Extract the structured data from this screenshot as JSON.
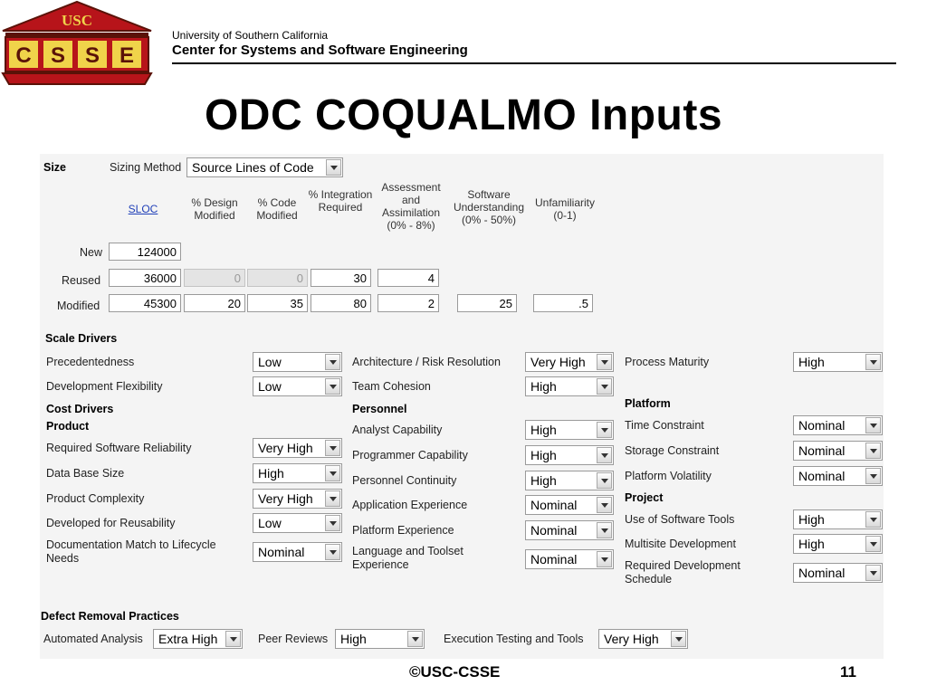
{
  "header": {
    "logo_top_text": "USC",
    "logo_letters": [
      "C",
      "S",
      "S",
      "E"
    ],
    "university": "University of Southern California",
    "center": "Center for Systems and Software Engineering",
    "title": "ODC COQUALMO Inputs"
  },
  "size": {
    "label": "Size",
    "sizing_method_label": "Sizing Method",
    "sizing_method_value": "Source Lines of Code",
    "headers": {
      "sloc": "SLOC",
      "design_modified": "% Design Modified",
      "code_modified": "% Code Modified",
      "integration_required": "% Integration Required",
      "assessment": "Assessment and Assimilation (0% - 8%)",
      "su": "Software Understanding (0% - 50%)",
      "unfamiliarity": "Unfamiliarity (0-1)"
    },
    "rows": {
      "new": {
        "label": "New",
        "sloc": "124000"
      },
      "reused": {
        "label": "Reused",
        "sloc": "36000",
        "dm": "0",
        "cm": "0",
        "ir": "30",
        "aa": "4"
      },
      "modified": {
        "label": "Modified",
        "sloc": "45300",
        "dm": "20",
        "cm": "35",
        "ir": "80",
        "aa": "2",
        "su": "25",
        "unfm": ".5"
      }
    }
  },
  "scale_drivers": {
    "heading": "Scale Drivers",
    "precedentedness": {
      "label": "Precedentedness",
      "value": "Low"
    },
    "dev_flexibility": {
      "label": "Development Flexibility",
      "value": "Low"
    },
    "arch_risk": {
      "label": "Architecture / Risk Resolution",
      "value": "Very High"
    },
    "team_cohesion": {
      "label": "Team Cohesion",
      "value": "High"
    },
    "process_maturity": {
      "label": "Process Maturity",
      "value": "High"
    }
  },
  "cost_drivers": {
    "heading": "Cost Drivers",
    "product": {
      "heading": "Product",
      "rely": {
        "label": "Required Software Reliability",
        "value": "Very High"
      },
      "data": {
        "label": "Data Base Size",
        "value": "High"
      },
      "cplx": {
        "label": "Product Complexity",
        "value": "Very High"
      },
      "ruse": {
        "label": "Developed for Reusability",
        "value": "Low"
      },
      "docu": {
        "label": "Documentation Match to Lifecycle Needs",
        "value": "Nominal"
      }
    },
    "personnel": {
      "heading": "Personnel",
      "acap": {
        "label": "Analyst Capability",
        "value": "High"
      },
      "pcap": {
        "label": "Programmer Capability",
        "value": "High"
      },
      "pcon": {
        "label": "Personnel Continuity",
        "value": "High"
      },
      "apex": {
        "label": "Application Experience",
        "value": "Nominal"
      },
      "plex": {
        "label": "Platform Experience",
        "value": "Nominal"
      },
      "ltex": {
        "label": "Language and Toolset Experience",
        "value": "Nominal"
      }
    },
    "platform": {
      "heading": "Platform",
      "time": {
        "label": "Time Constraint",
        "value": "Nominal"
      },
      "stor": {
        "label": "Storage Constraint",
        "value": "Nominal"
      },
      "pvol": {
        "label": "Platform Volatility",
        "value": "Nominal"
      }
    },
    "project": {
      "heading": "Project",
      "tool": {
        "label": "Use of Software Tools",
        "value": "High"
      },
      "site": {
        "label": "Multisite Development",
        "value": "High"
      },
      "sced": {
        "label": "Required Development Schedule",
        "value": "Nominal"
      }
    }
  },
  "defect_removal": {
    "heading": "Defect Removal Practices",
    "automated_analysis": {
      "label": "Automated Analysis",
      "value": "Extra High"
    },
    "peer_reviews": {
      "label": "Peer Reviews",
      "value": "High"
    },
    "execution_testing": {
      "label": "Execution Testing and Tools",
      "value": "Very High"
    }
  },
  "footer": {
    "copyright": "©USC-CSSE",
    "page_number": "11"
  },
  "colors": {
    "logo_red": "#b7141a",
    "logo_gold": "#f0d34a",
    "logo_maroon": "#5a1208",
    "panel_bg": "#f4f4f4"
  }
}
